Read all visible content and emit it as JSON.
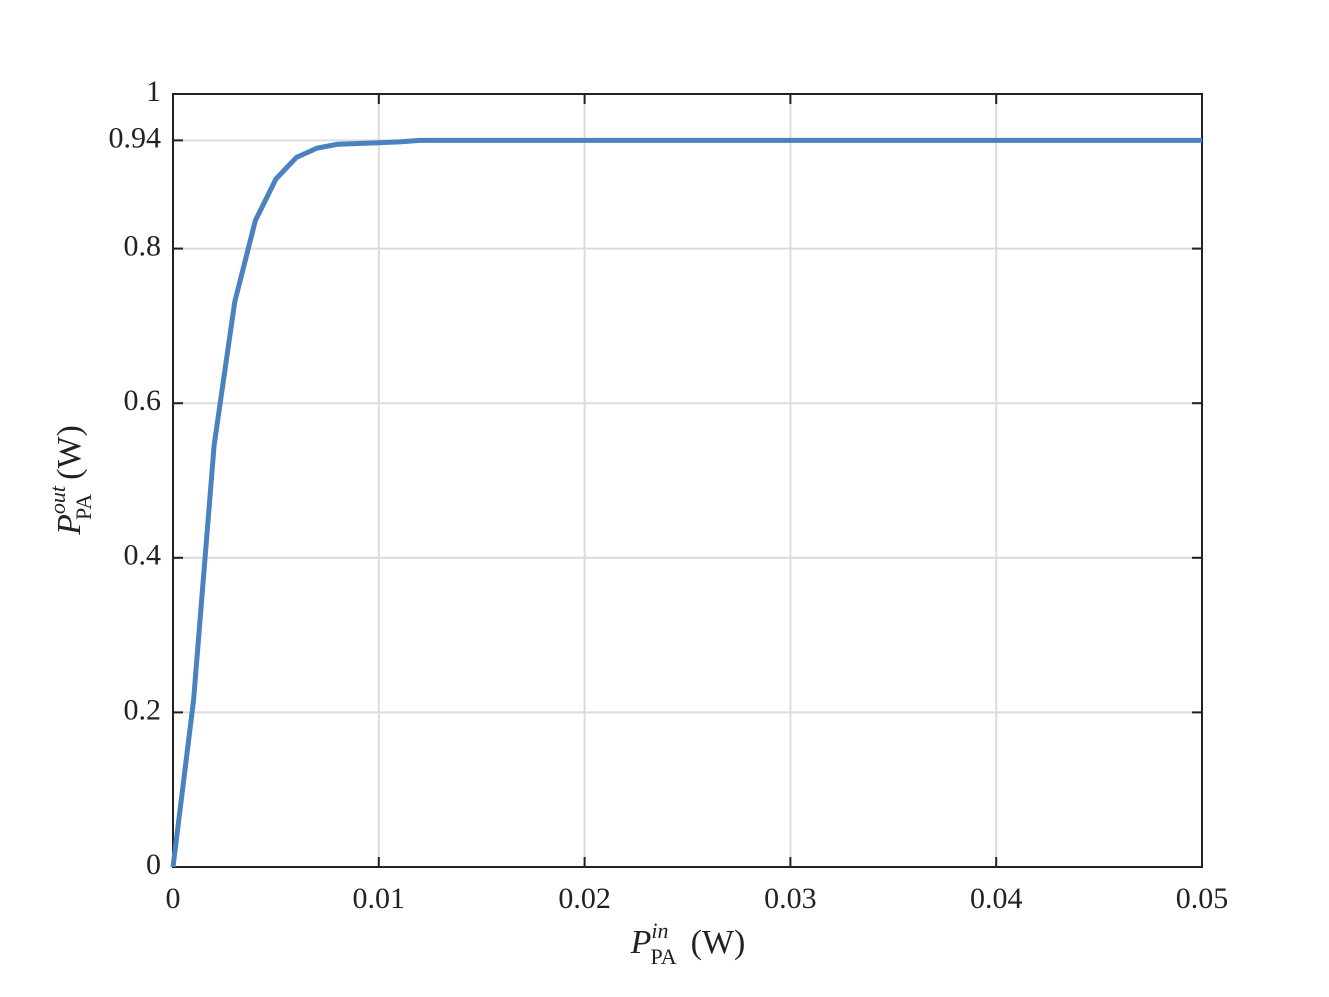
{
  "chart_data": {
    "type": "line",
    "xlabel": {
      "symbol": "P",
      "superscript": "in",
      "subscript": "PA",
      "unit": "(W)"
    },
    "ylabel": {
      "symbol": "P",
      "superscript": "out",
      "subscript": "PA",
      "unit": "(W)"
    },
    "x": [
      0,
      0.001,
      0.002,
      0.003,
      0.004,
      0.005,
      0.006,
      0.007,
      0.008,
      0.009,
      0.01,
      0.011,
      0.012,
      0.013,
      0.02,
      0.03,
      0.04,
      0.05
    ],
    "series": [
      {
        "name": "P_out",
        "color": "#4a81bf",
        "values": [
          0,
          0.216,
          0.546,
          0.731,
          0.836,
          0.89,
          0.918,
          0.93,
          0.935,
          0.936,
          0.937,
          0.938,
          0.94,
          0.94,
          0.94,
          0.94,
          0.94,
          0.94
        ]
      }
    ],
    "xlim": [
      0,
      0.05
    ],
    "ylim": [
      0,
      1
    ],
    "xticks": [
      0,
      0.01,
      0.02,
      0.03,
      0.04,
      0.05
    ],
    "yticks": [
      0,
      0.2,
      0.4,
      0.6,
      0.8,
      0.94,
      1
    ],
    "grid": true
  }
}
